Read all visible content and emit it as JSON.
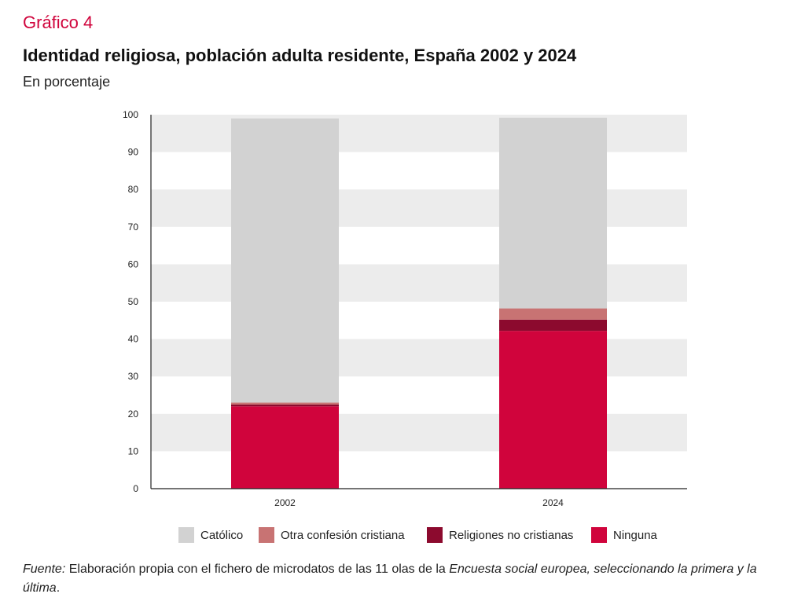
{
  "header": {
    "kicker": "Gráfico 4",
    "title": "Identidad religiosa, población adulta residente, España 2002 y 2024",
    "subtitle": "En porcentaje"
  },
  "colors": {
    "catolico": "#d2d2d2",
    "otra_cristiana": "#c87373",
    "no_cristianas": "#8c0a2e",
    "ninguna": "#d0043c",
    "band": "#ececec"
  },
  "chart_data": {
    "type": "bar",
    "stacked": true,
    "categories": [
      "2002",
      "2024"
    ],
    "series": [
      {
        "name": "Ninguna",
        "values": [
          22.0,
          42.2
        ]
      },
      {
        "name": "Religiones no cristianas",
        "values": [
          0.5,
          3.0
        ]
      },
      {
        "name": "Otra confesión cristiana",
        "values": [
          0.5,
          3.0
        ]
      },
      {
        "name": "Católico",
        "values": [
          76.0,
          51.0
        ]
      }
    ],
    "ylim": [
      0,
      100
    ],
    "yticks": [
      "0",
      "10",
      "20",
      "30",
      "40",
      "50",
      "60",
      "70",
      "80",
      "90",
      "100"
    ],
    "grid": "alternating horizontal bands",
    "legend_position": "bottom"
  },
  "legend": [
    {
      "label": "Católico",
      "color_key": "catolico"
    },
    {
      "label": "Otra confesión cristiana",
      "color_key": "otra_cristiana"
    },
    {
      "label": "Religiones no cristianas",
      "color_key": "no_cristianas"
    },
    {
      "label": "Ninguna",
      "color_key": "ninguna"
    }
  ],
  "source": {
    "label": "Fuente:",
    "text1": " Elaboración propia con el fichero de microdatos de las 11 olas de la ",
    "italic": "Encuesta social europea, seleccionando la primera y la última",
    "end": "."
  }
}
